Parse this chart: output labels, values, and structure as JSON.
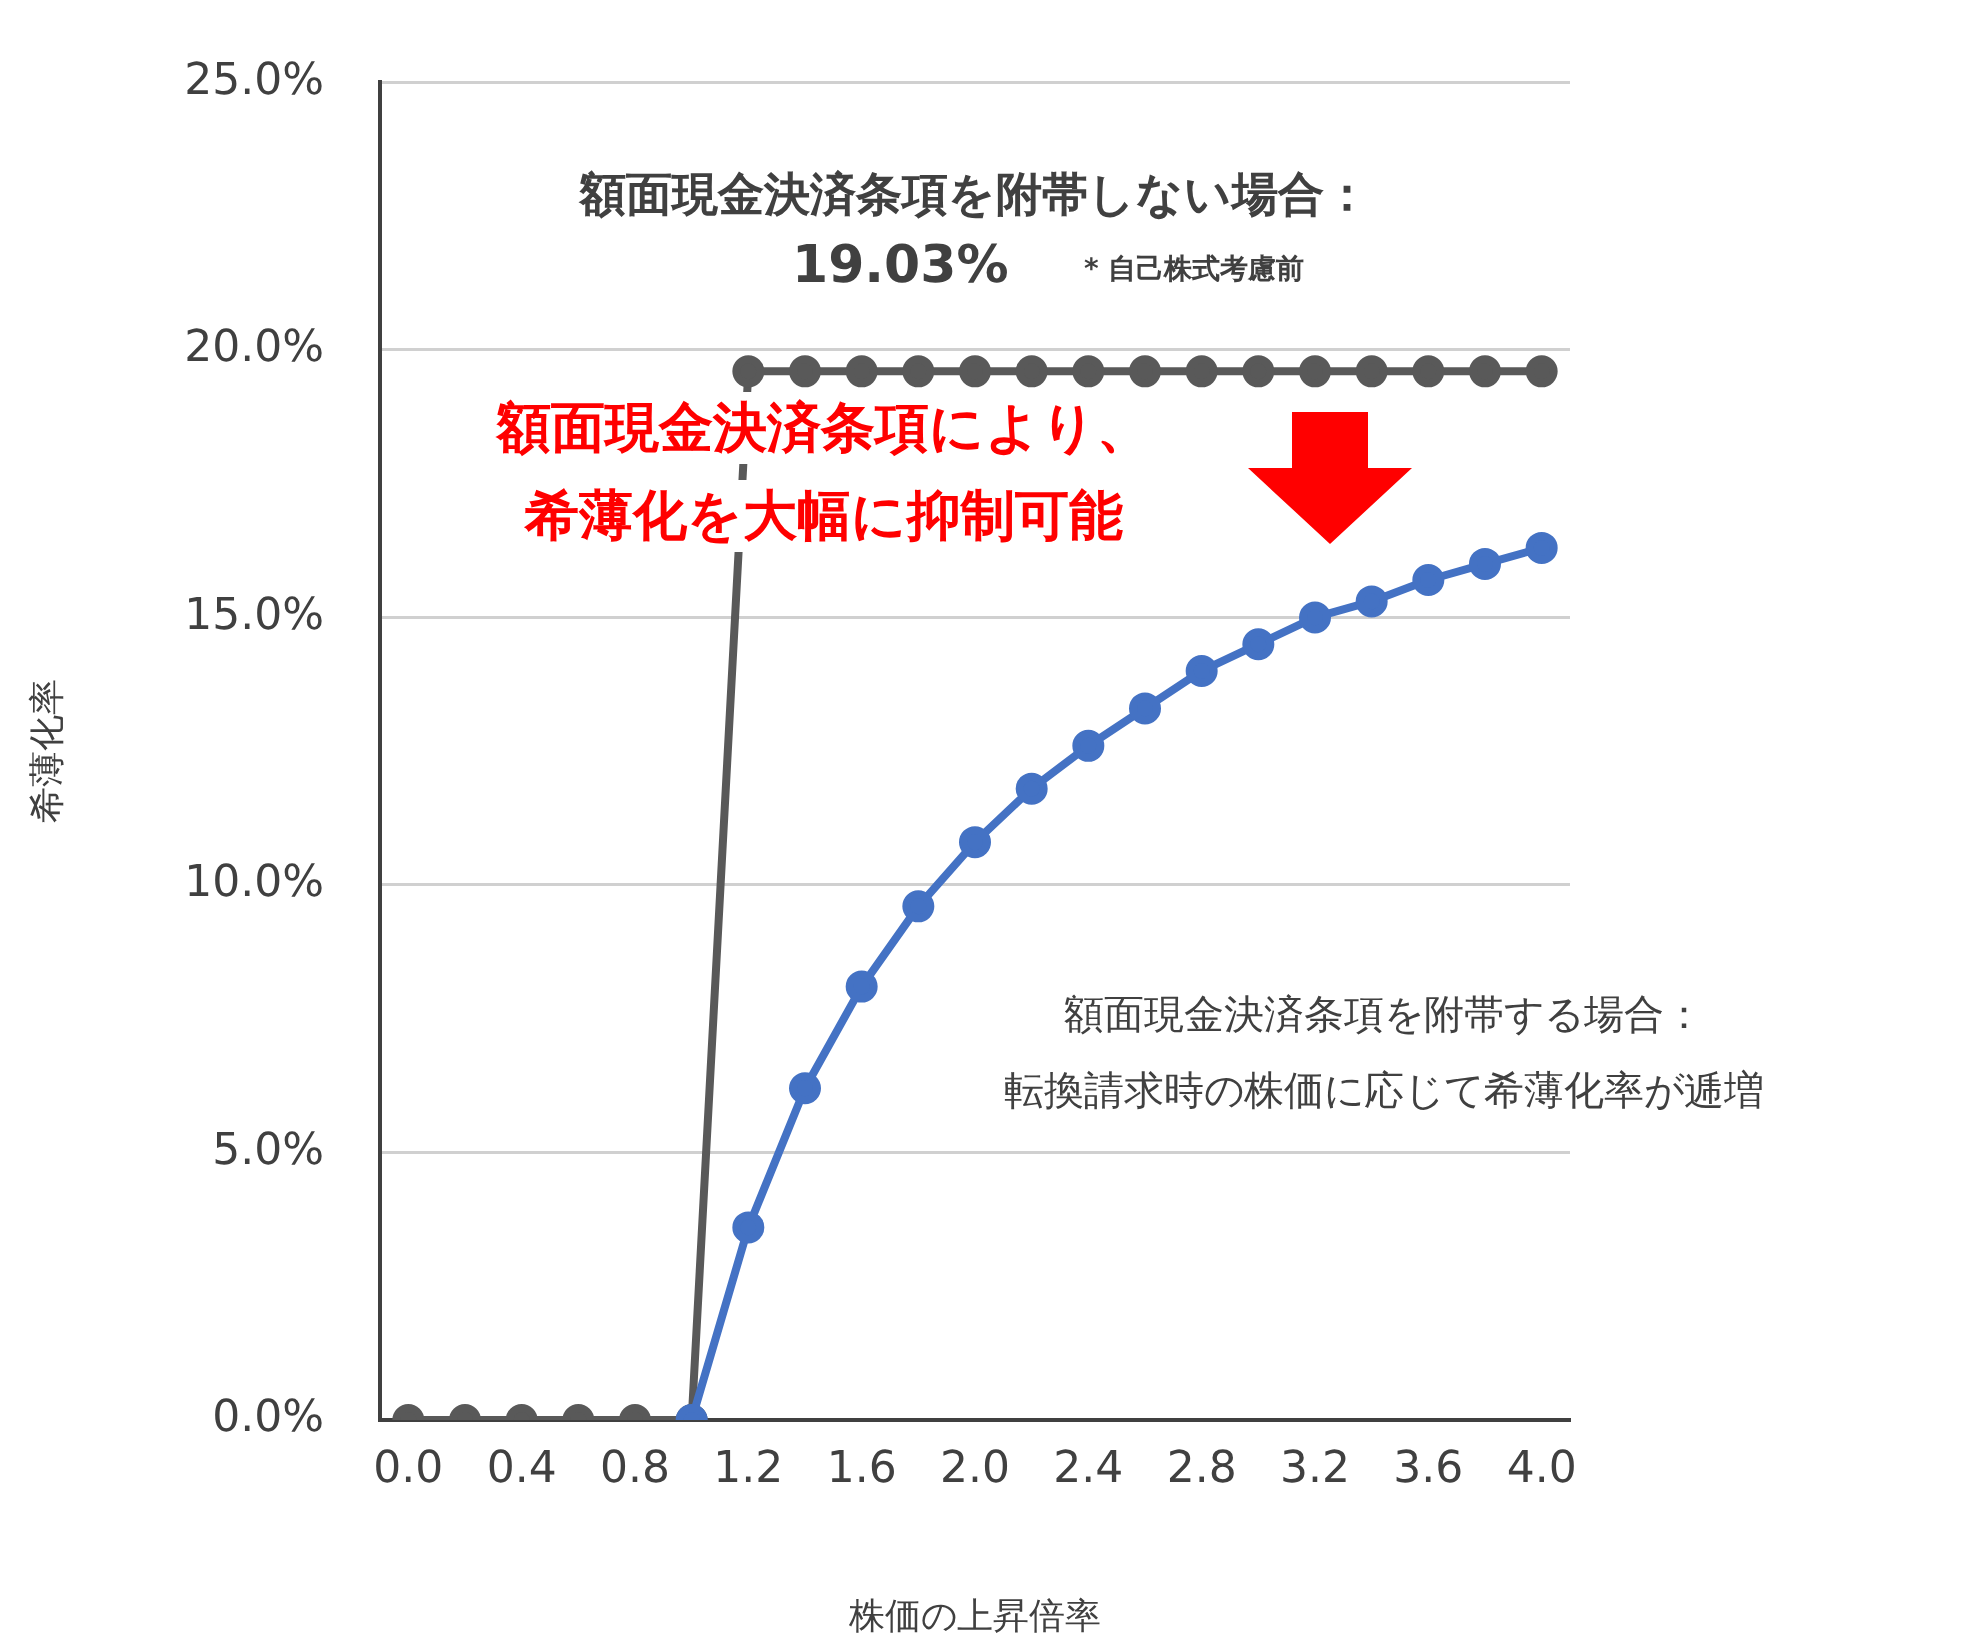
{
  "chart_data": {
    "type": "line",
    "xlabel": "株価の上昇倍率",
    "ylabel": "希薄化率",
    "xlim": [
      -0.1,
      4.1
    ],
    "xticks": [
      {
        "value": 0,
        "label": "0.0"
      },
      0.4,
      0.8,
      1.2,
      1.6,
      {
        "value": 2,
        "label": "2.0"
      },
      2.4,
      2.8,
      3.2,
      3.6,
      {
        "value": 4,
        "label": "4.0"
      }
    ],
    "ylim": [
      0,
      25
    ],
    "yticks": [
      {
        "value": 0,
        "label": "0.0%"
      },
      {
        "value": 5,
        "label": "5.0%"
      },
      {
        "value": 10,
        "label": "10.0%"
      },
      {
        "value": 15,
        "label": "15.0%"
      },
      {
        "value": 20,
        "label": "20.0%"
      },
      {
        "value": 25,
        "label": "25.0%"
      }
    ],
    "grid": "y",
    "legend": false,
    "marker": "circle",
    "line_style": "solid",
    "series": [
      {
        "color": "#4472c4",
        "x": [
          1.0,
          1.2,
          1.4,
          1.6,
          1.8,
          2.0,
          2.2,
          2.4,
          2.6,
          2.8,
          3.0,
          3.2,
          3.4,
          3.6,
          3.8,
          4.0
        ],
        "values": [
          0,
          3.6,
          6.2,
          8.1,
          9.6,
          10.8,
          11.8,
          12.6,
          13.3,
          14.0,
          14.5,
          15.0,
          15.3,
          15.7,
          16.0,
          16.3
        ]
      },
      {
        "color": "#595959",
        "x": [
          0,
          0.2,
          0.4,
          0.6,
          0.8,
          1.0,
          1.2,
          1.4,
          1.6,
          1.8,
          2.0,
          2.2,
          2.4,
          2.6,
          2.8,
          3.0,
          3.2,
          3.4,
          3.6,
          3.8,
          4.0
        ],
        "values": [
          0,
          0,
          0,
          0,
          0,
          0,
          19.6,
          19.6,
          19.6,
          19.6,
          19.6,
          19.6,
          19.6,
          19.6,
          19.6,
          19.6,
          19.6,
          19.6,
          19.6,
          19.6,
          19.6
        ]
      }
    ],
    "annotations": [
      "額面現金決済条項を附帯しない場合：",
      "19.03%",
      "* 自己株式考慮前",
      "額面現金決済条項により、",
      "希薄化を大幅に抑制可能",
      "額面現金決済条項を附帯する場合：",
      "転換請求時の株価に応じて希薄化率が逓増"
    ]
  }
}
